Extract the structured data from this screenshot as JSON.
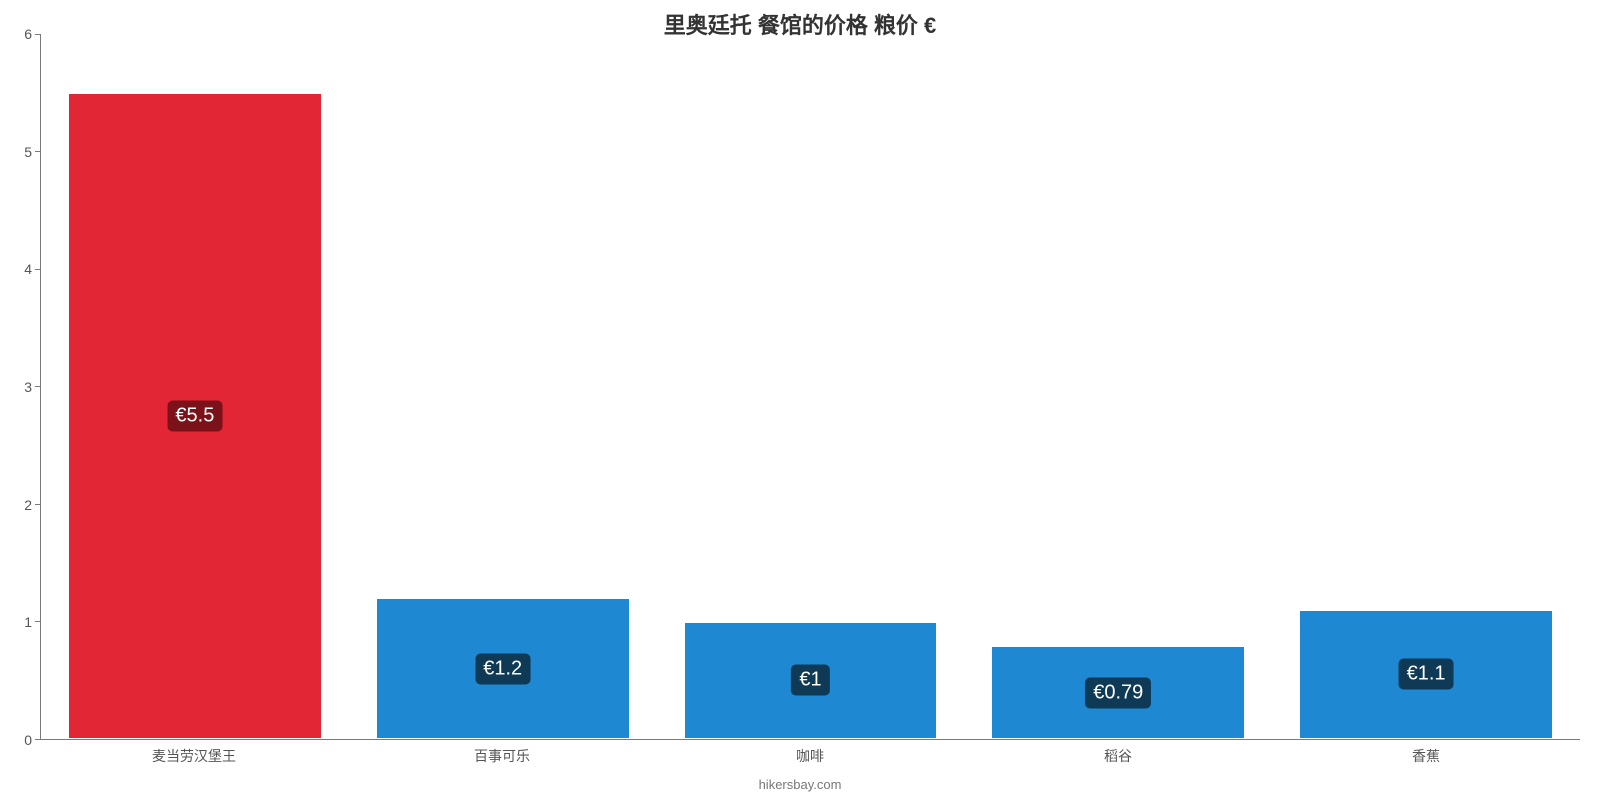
{
  "chart": {
    "type": "bar",
    "title": "里奥廷托 餐馆的价格 粮价 €",
    "title_fontsize": 22,
    "title_color": "#333333",
    "credit": "hikersbay.com",
    "credit_fontsize": 13,
    "credit_color": "#777777",
    "background_color": "#ffffff",
    "axis_color": "#7a7a7a",
    "axis_label_color": "#555555",
    "axis_label_fontsize": 14,
    "ylim": [
      0,
      6
    ],
    "ytick_step": 1,
    "categories": [
      "麦当劳汉堡王",
      "百事可乐",
      "咖啡",
      "稻谷",
      "香蕉"
    ],
    "values": [
      5.5,
      1.2,
      1.0,
      0.79,
      1.1
    ],
    "value_labels": [
      "€5.5",
      "€1.2",
      "€1",
      "€0.79",
      "€1.1"
    ],
    "bar_colors": [
      "#e32636",
      "#1e88d2",
      "#1e88d2",
      "#1e88d2",
      "#1e88d2"
    ],
    "bar_width_pct": 16.5,
    "badge_fontsize": 20,
    "badge_colors": [
      "#7b1219",
      "#0f3a56",
      "#0f3a56",
      "#0f3a56",
      "#0f3a56"
    ],
    "badge_text_color": "#ffffff"
  }
}
